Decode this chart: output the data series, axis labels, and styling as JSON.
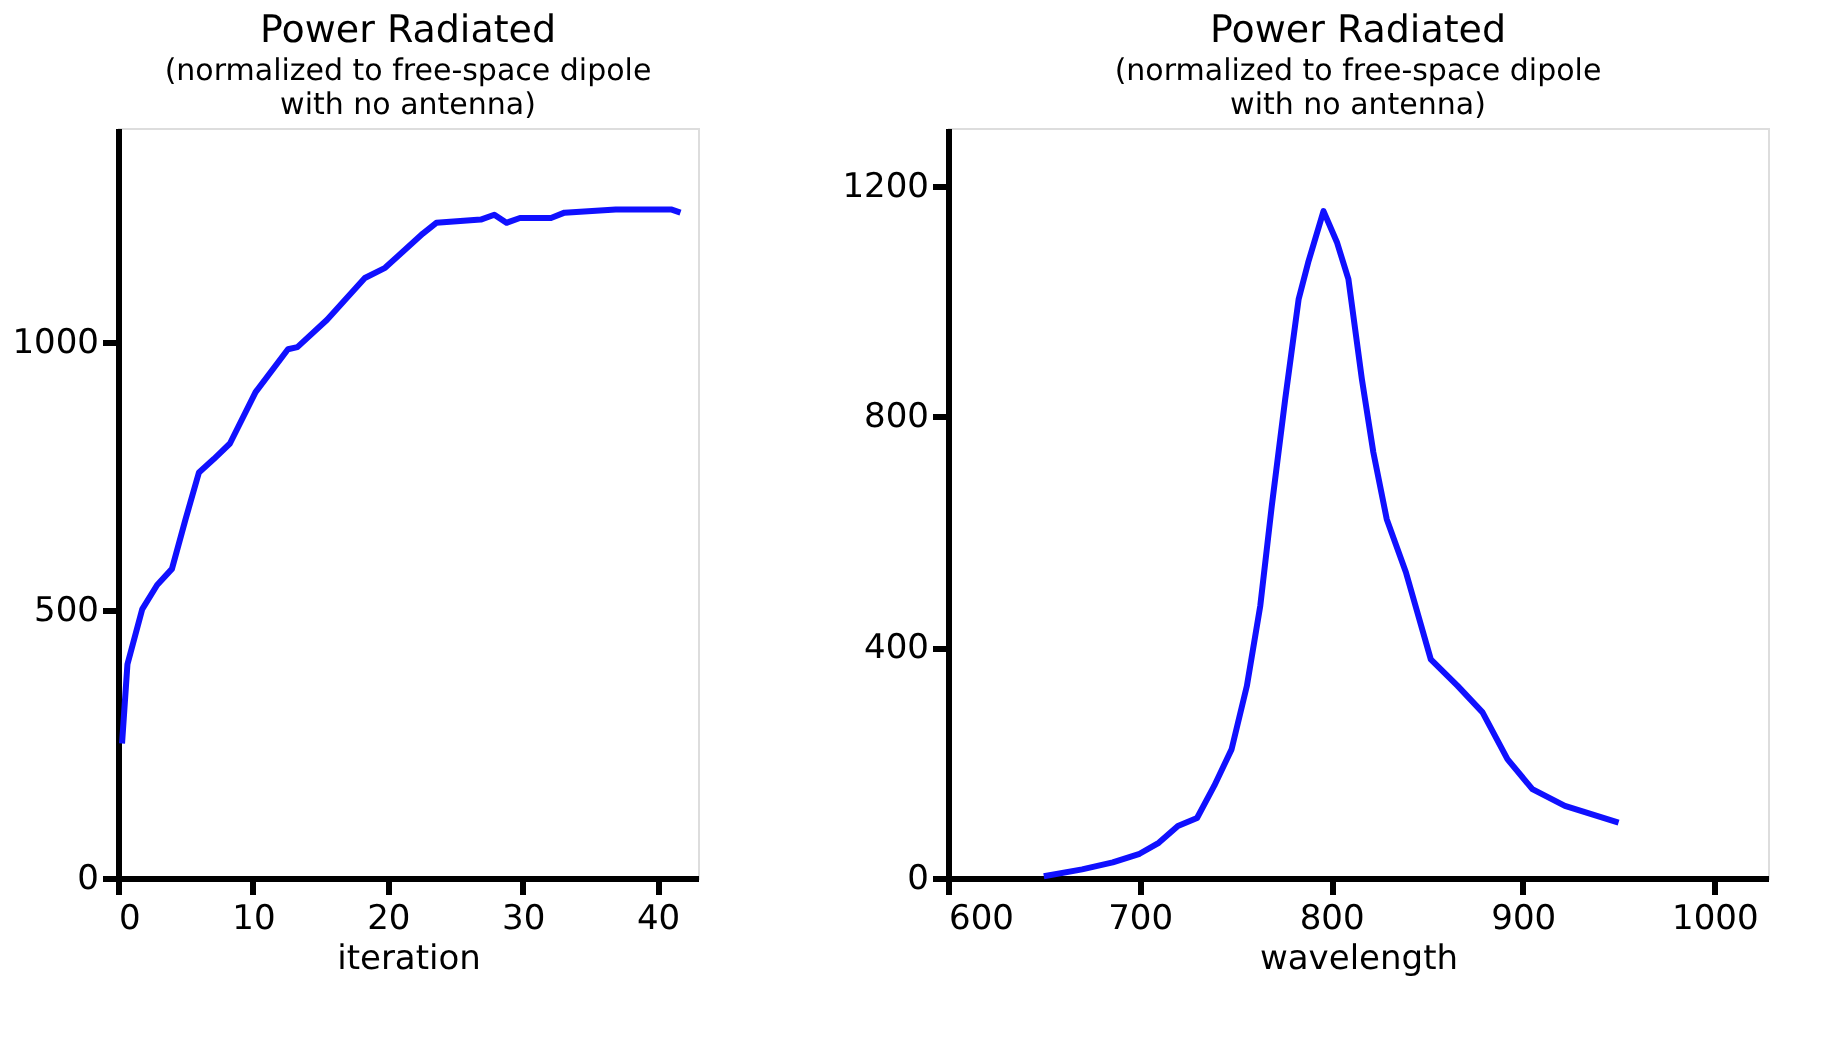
{
  "chart_data": [
    {
      "type": "line",
      "title": "Power Radiated",
      "subtitle": "(normalized to free-space dipole\nwith no antenna)",
      "xlabel": "iteration",
      "xlim": [
        0,
        43
      ],
      "xticks": [
        0,
        10,
        20,
        30,
        40
      ],
      "ylim": [
        0,
        1400
      ],
      "yticks": [
        0,
        500,
        1000
      ],
      "marker": "none",
      "line_style": "solid",
      "series": [
        {
          "color": "#1010ff",
          "x": [
            0.3,
            0.7,
            1.8,
            2.9,
            4.0,
            5.0,
            6.0,
            7.1,
            8.3,
            10.2,
            12.6,
            13.3,
            15.5,
            18.3,
            19.8,
            22.6,
            23.6,
            26.9,
            27.9,
            28.8,
            29.8,
            32.1,
            33.1,
            36.9,
            41.0,
            41.7
          ],
          "values": [
            251,
            399,
            502,
            547,
            577,
            669,
            757,
            782,
            811,
            907,
            987,
            991,
            1042,
            1120,
            1139,
            1203,
            1223,
            1229,
            1238,
            1223,
            1232,
            1232,
            1242,
            1248,
            1248,
            1242
          ]
        }
      ]
    },
    {
      "type": "line",
      "title": "Power Radiated",
      "subtitle": "(normalized to free-space dipole\nwith no antenna)",
      "xlabel": "wavelength",
      "xlim": [
        600,
        1028
      ],
      "xticks": [
        600,
        700,
        800,
        900,
        1000
      ],
      "ylim": [
        0,
        1300
      ],
      "yticks": [
        0,
        400,
        800,
        1200
      ],
      "marker": "none",
      "line_style": "solid",
      "series": [
        {
          "color": "#1010ff",
          "x": [
            650,
            670,
            686,
            700,
            710,
            720,
            730,
            739,
            748,
            756,
            763,
            769,
            776,
            783,
            788,
            796,
            803,
            809,
            816,
            822,
            829,
            839,
            852,
            866,
            879,
            892,
            905,
            922,
            950
          ],
          "values": [
            3,
            15,
            27,
            42,
            61,
            90,
            104,
            160,
            223,
            333,
            472,
            645,
            830,
            1003,
            1067,
            1156,
            1102,
            1038,
            865,
            738,
            622,
            530,
            379,
            333,
            287,
            206,
            154,
            125,
            96
          ]
        }
      ]
    }
  ]
}
